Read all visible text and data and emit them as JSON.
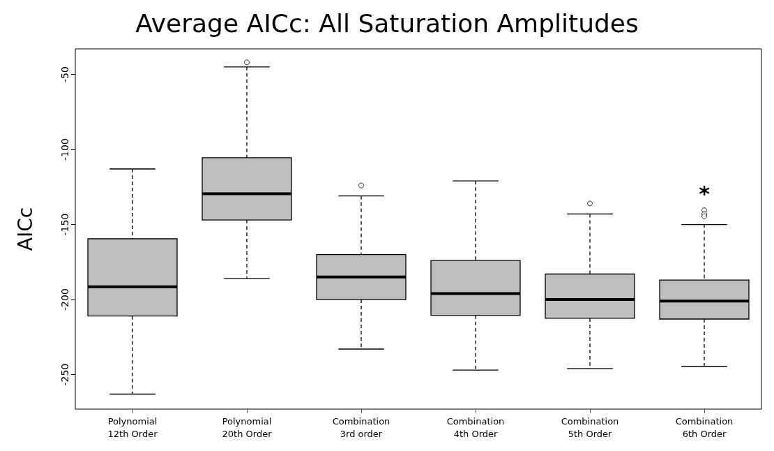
{
  "chart_data": {
    "type": "box",
    "title": "Average AICc: All Saturation Amplitudes",
    "ylabel": "AICc",
    "categories": [
      "Polynomial\n12th Order",
      "Polynomial\n20th Order",
      "Combination\n3rd order",
      "Combination\n4th Order",
      "Combination\n5th Order",
      "Combination\n6th Order"
    ],
    "color": "#bebebe",
    "boxes": [
      {
        "low": -263,
        "q1": -211,
        "median": -191.5,
        "q3": -159.5,
        "high": -113
      },
      {
        "low": -186,
        "q1": -147,
        "median": -129.5,
        "q3": -105.5,
        "high": -45,
        "outliers": [
          -42
        ]
      },
      {
        "low": -233,
        "q1": -200,
        "median": -185,
        "q3": -170,
        "high": -131,
        "outliers": [
          -124
        ]
      },
      {
        "low": -247,
        "q1": -210.5,
        "median": -196,
        "q3": -174,
        "high": -121
      },
      {
        "low": -246,
        "q1": -212.5,
        "median": -200,
        "q3": -183,
        "high": -143,
        "outliers": [
          -136
        ]
      },
      {
        "low": -244.5,
        "q1": -213,
        "median": -201,
        "q3": -187,
        "high": -150,
        "outliers": [
          -140.5,
          -143,
          -144.5
        ]
      }
    ],
    "annotations": [
      "*"
    ],
    "ylim": [
      -273,
      -33
    ],
    "yticks": [
      -250,
      -200,
      -150,
      -100,
      -50
    ],
    "grid": false
  }
}
